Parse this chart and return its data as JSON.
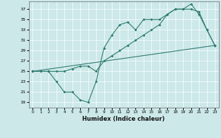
{
  "title": "",
  "xlabel": "Humidex (Indice chaleur)",
  "xlim": [
    -0.5,
    23.5
  ],
  "ylim": [
    18,
    38.5
  ],
  "yticks": [
    19,
    21,
    23,
    25,
    27,
    29,
    31,
    33,
    35,
    37
  ],
  "xticks": [
    0,
    1,
    2,
    3,
    4,
    5,
    6,
    7,
    8,
    9,
    10,
    11,
    12,
    13,
    14,
    15,
    16,
    17,
    18,
    19,
    20,
    21,
    22,
    23
  ],
  "bg_color": "#cce8e8",
  "line_color": "#2d7a6e",
  "series1_x": [
    0,
    1,
    2,
    3,
    4,
    5,
    6,
    7,
    8,
    9,
    10,
    11,
    12,
    13,
    14,
    15,
    16,
    17,
    18,
    19,
    20,
    21,
    22,
    23
  ],
  "series1_y": [
    25,
    25,
    25,
    23,
    21,
    21,
    19.5,
    19,
    23,
    29.5,
    32,
    34,
    34.5,
    33,
    35,
    35,
    35,
    36,
    37,
    37,
    38,
    36,
    33,
    30
  ],
  "series2_x": [
    0,
    1,
    2,
    3,
    4,
    5,
    6,
    7,
    8,
    9,
    10,
    11,
    12,
    13,
    14,
    15,
    16,
    17,
    18,
    19,
    20,
    21,
    22,
    23
  ],
  "series2_y": [
    25,
    25,
    25,
    25,
    25,
    25.5,
    26,
    26,
    25,
    27,
    28,
    29,
    30,
    31,
    32,
    33,
    34,
    36,
    37,
    37,
    37,
    36.5,
    33,
    30
  ],
  "series3_x": [
    0,
    23
  ],
  "series3_y": [
    25,
    30
  ]
}
